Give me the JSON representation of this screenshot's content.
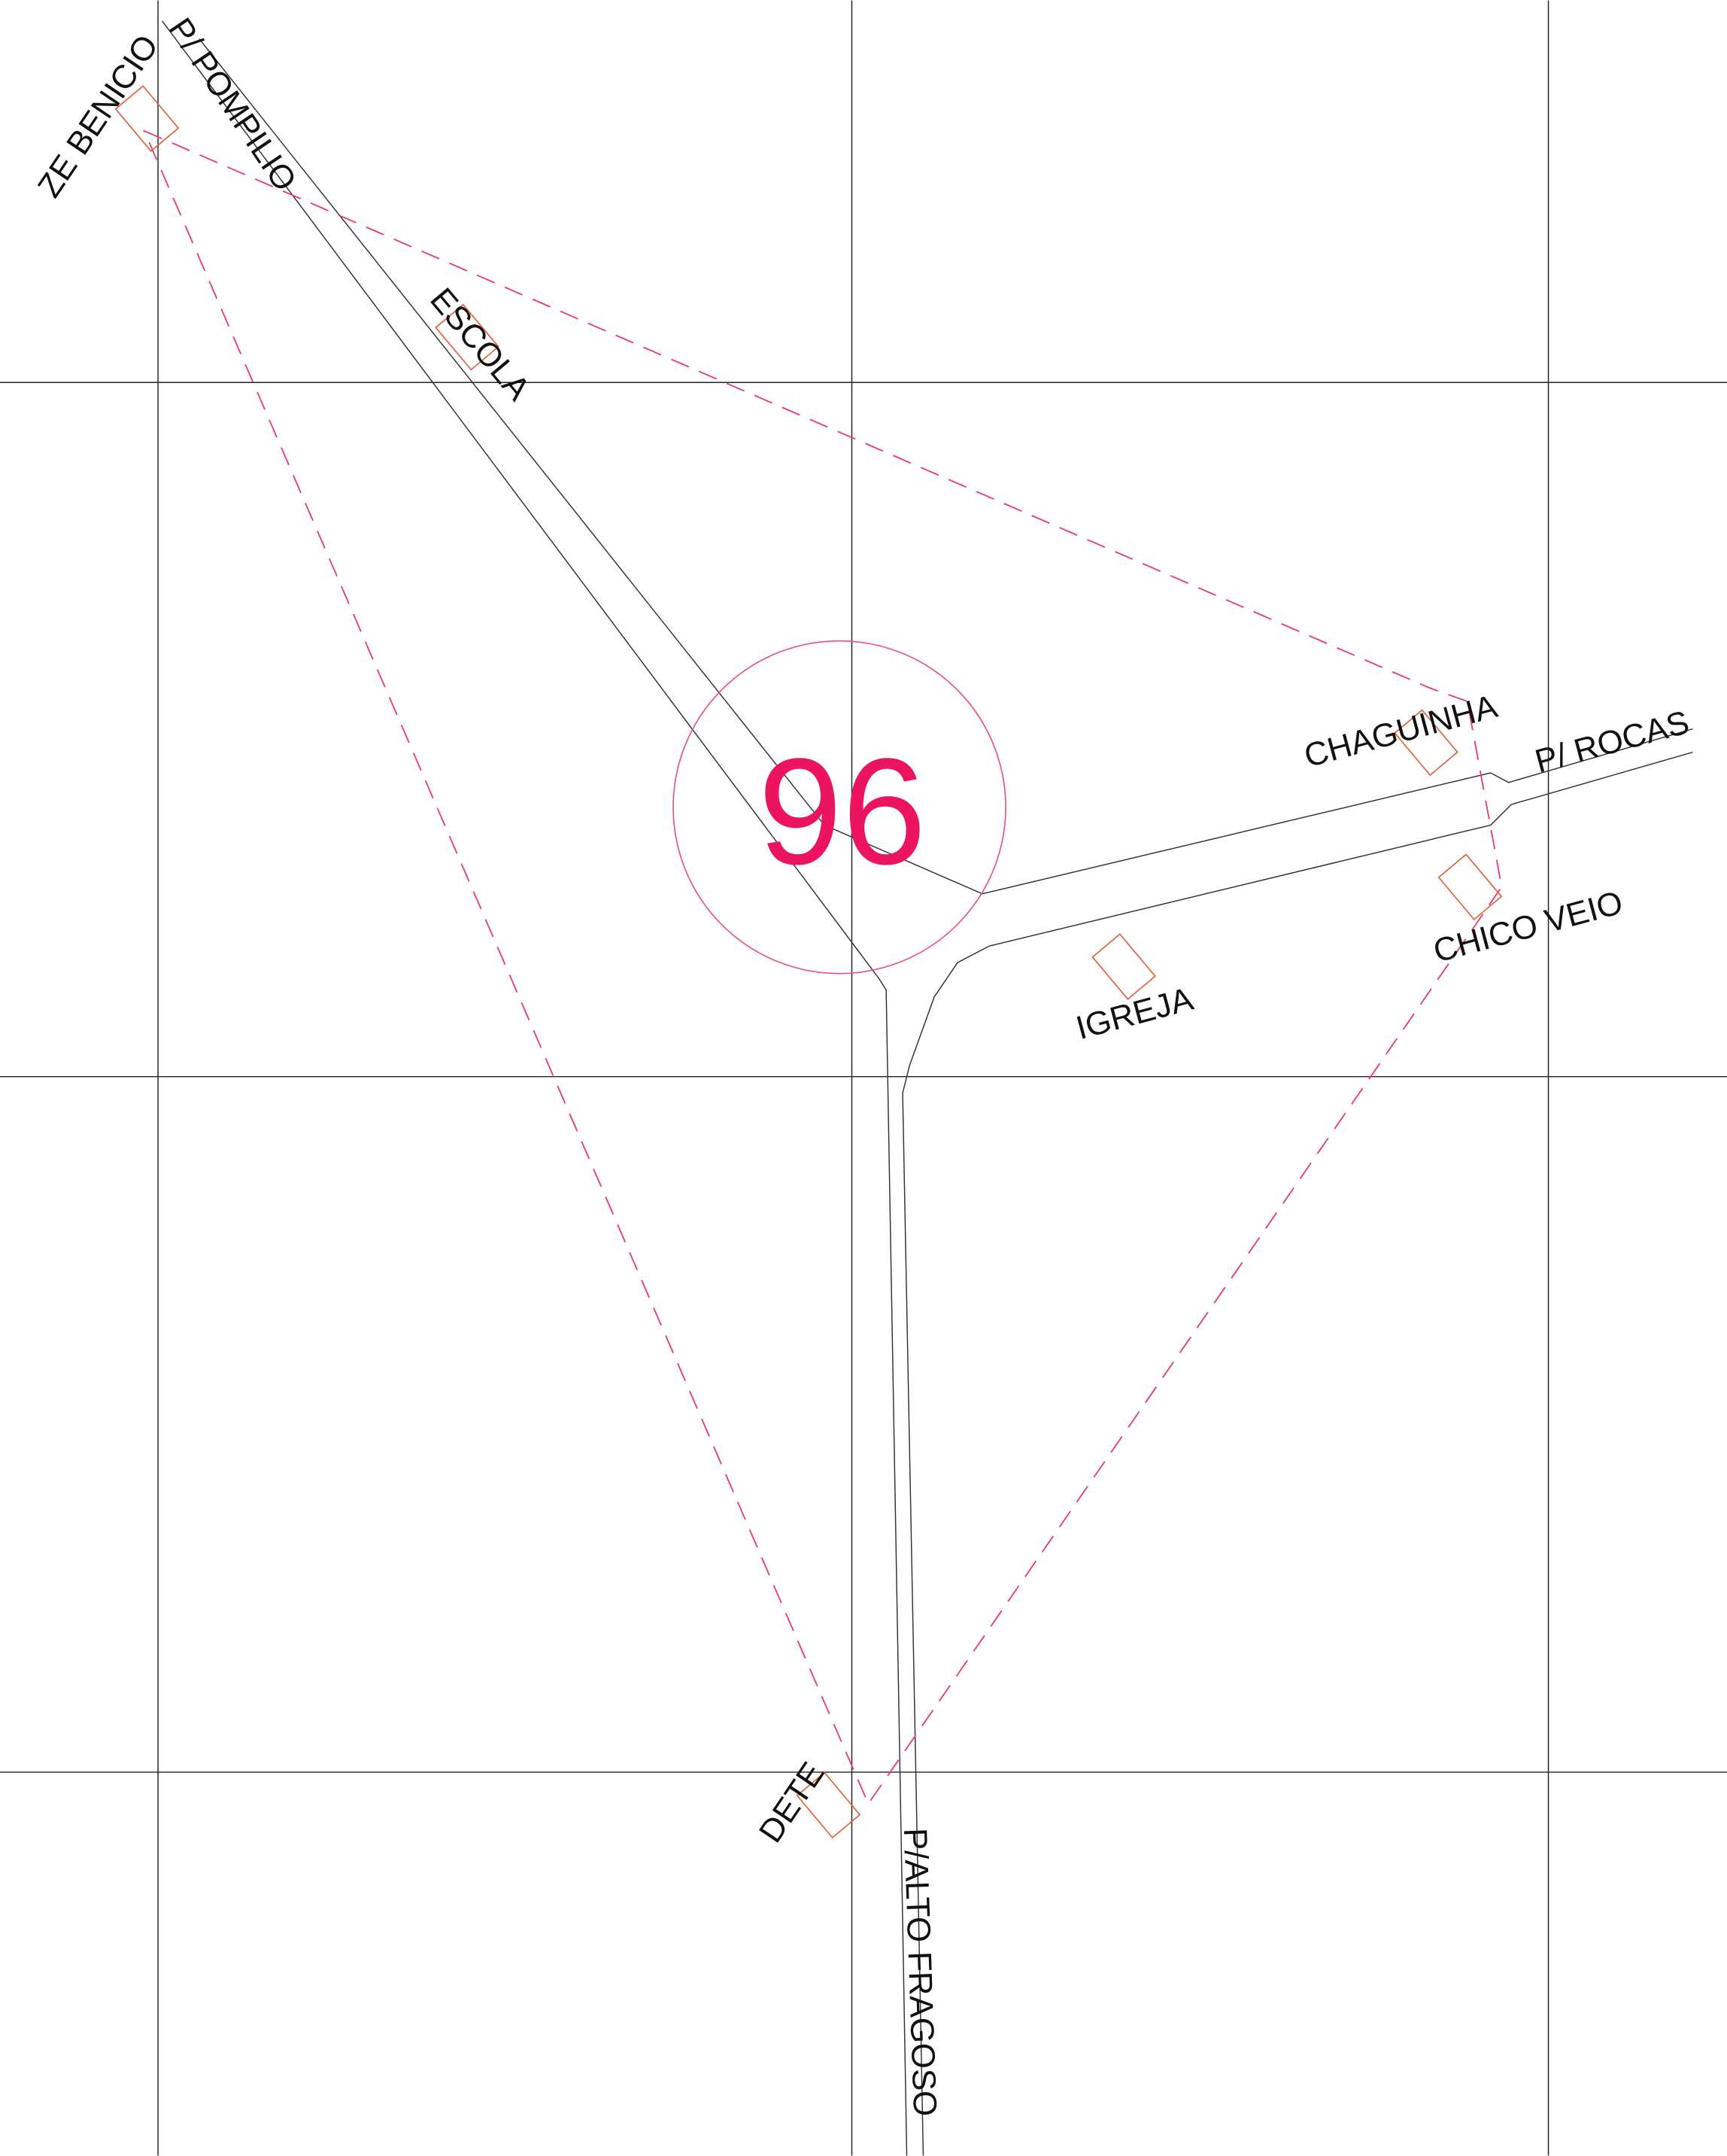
{
  "map": {
    "number": "96",
    "places": {
      "ze_benicio": "ZE BENICIO",
      "escola": "ESCOLA",
      "chaguinha": "CHAGUINHA",
      "chico_veio": "CHICO VEIO",
      "igreja": "IGREJA",
      "dete": "DETE"
    },
    "roads": {
      "pompilio": "P/ POMPILIO",
      "rocas": "P/ ROCAS",
      "alto_fragoso": "P/ALTO FRAGOSO"
    }
  }
}
